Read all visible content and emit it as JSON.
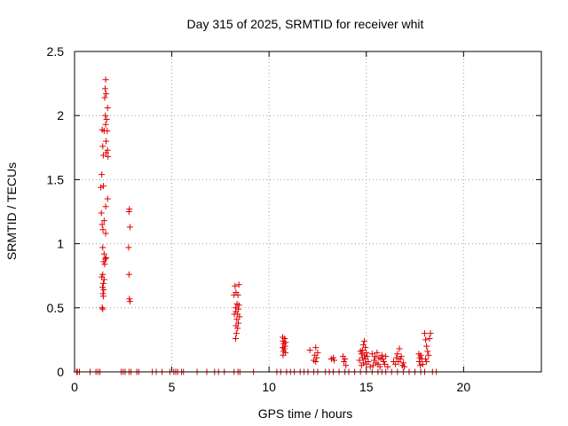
{
  "chart_data": {
    "type": "scatter",
    "title": "Day 315 of 2025, SRMTID for receiver whit",
    "xlabel": "GPS time / hours",
    "ylabel": "SRMTID / TECUs",
    "xlim": [
      0,
      24
    ],
    "ylim": [
      0,
      2.5
    ],
    "xticks": [
      0,
      5,
      10,
      15,
      20
    ],
    "yticks": [
      0,
      0.5,
      1,
      1.5,
      2,
      2.5
    ],
    "xtick_labels": [
      "0",
      "5",
      "10",
      "15",
      "20"
    ],
    "ytick_labels": [
      "0",
      "0.5",
      "1",
      "1.5",
      "2",
      "2.5"
    ],
    "grid": true,
    "marker": "+",
    "color": "#dd0000",
    "series": [
      {
        "name": "whit",
        "points": [
          [
            0.1,
            0
          ],
          [
            0.15,
            0
          ],
          [
            0.25,
            0
          ],
          [
            0.8,
            0
          ],
          [
            1.1,
            0
          ],
          [
            1.2,
            0
          ],
          [
            1.3,
            0
          ],
          [
            2.4,
            0
          ],
          [
            2.5,
            0
          ],
          [
            2.6,
            0
          ],
          [
            2.8,
            0
          ],
          [
            2.9,
            0
          ],
          [
            3.2,
            0
          ],
          [
            3.3,
            0
          ],
          [
            4.0,
            0
          ],
          [
            4.2,
            0
          ],
          [
            4.5,
            0
          ],
          [
            4.9,
            0
          ],
          [
            5.1,
            0
          ],
          [
            5.2,
            0
          ],
          [
            5.3,
            0
          ],
          [
            5.5,
            0
          ],
          [
            5.6,
            0
          ],
          [
            6.3,
            0
          ],
          [
            6.8,
            0
          ],
          [
            7.2,
            0
          ],
          [
            7.4,
            0
          ],
          [
            7.7,
            0
          ],
          [
            8.2,
            0
          ],
          [
            8.4,
            0
          ],
          [
            8.5,
            0
          ],
          [
            9.2,
            0
          ],
          [
            10.4,
            0
          ],
          [
            10.6,
            0
          ],
          [
            10.9,
            0
          ],
          [
            11.1,
            0
          ],
          [
            11.3,
            0
          ],
          [
            11.6,
            0
          ],
          [
            11.8,
            0
          ],
          [
            12.0,
            0
          ],
          [
            12.3,
            0
          ],
          [
            12.5,
            0
          ],
          [
            12.9,
            0
          ],
          [
            13.1,
            0
          ],
          [
            13.3,
            0
          ],
          [
            13.6,
            0
          ],
          [
            13.9,
            0
          ],
          [
            14.1,
            0
          ],
          [
            14.4,
            0
          ],
          [
            14.7,
            0
          ],
          [
            15.0,
            0
          ],
          [
            15.3,
            0
          ],
          [
            15.6,
            0
          ],
          [
            15.8,
            0
          ],
          [
            16.0,
            0
          ],
          [
            16.3,
            0
          ],
          [
            16.6,
            0
          ],
          [
            16.9,
            0
          ],
          [
            17.2,
            0
          ],
          [
            17.5,
            0
          ],
          [
            17.8,
            0
          ],
          [
            18.0,
            0
          ],
          [
            18.4,
            0
          ],
          [
            18.6,
            0
          ],
          [
            1.6,
            2.28
          ],
          [
            1.57,
            2.21
          ],
          [
            1.62,
            2.17
          ],
          [
            1.55,
            2.14
          ],
          [
            1.7,
            2.06
          ],
          [
            1.58,
            2.0
          ],
          [
            1.65,
            1.97
          ],
          [
            1.6,
            1.93
          ],
          [
            1.42,
            1.89
          ],
          [
            1.52,
            1.88
          ],
          [
            1.68,
            1.88
          ],
          [
            1.62,
            1.8
          ],
          [
            1.45,
            1.76
          ],
          [
            1.7,
            1.73
          ],
          [
            1.62,
            1.71
          ],
          [
            1.48,
            1.69
          ],
          [
            1.72,
            1.68
          ],
          [
            1.4,
            1.54
          ],
          [
            1.48,
            1.45
          ],
          [
            1.35,
            1.44
          ],
          [
            1.7,
            1.35
          ],
          [
            1.6,
            1.29
          ],
          [
            1.38,
            1.24
          ],
          [
            1.52,
            1.18
          ],
          [
            1.42,
            1.15
          ],
          [
            1.46,
            1.11
          ],
          [
            1.6,
            1.08
          ],
          [
            1.45,
            0.97
          ],
          [
            1.52,
            0.92
          ],
          [
            1.62,
            0.89
          ],
          [
            1.58,
            0.88
          ],
          [
            1.5,
            0.86
          ],
          [
            1.55,
            0.84
          ],
          [
            1.45,
            0.76
          ],
          [
            1.4,
            0.74
          ],
          [
            1.52,
            0.72
          ],
          [
            1.48,
            0.69
          ],
          [
            1.44,
            0.66
          ],
          [
            1.5,
            0.64
          ],
          [
            1.46,
            0.61
          ],
          [
            1.48,
            0.59
          ],
          [
            1.42,
            0.5
          ],
          [
            1.45,
            0.49
          ],
          [
            2.82,
            1.27
          ],
          [
            2.8,
            1.25
          ],
          [
            2.85,
            1.13
          ],
          [
            2.78,
            0.97
          ],
          [
            2.8,
            0.76
          ],
          [
            2.82,
            0.57
          ],
          [
            2.85,
            0.55
          ],
          [
            8.25,
            0.67
          ],
          [
            8.45,
            0.68
          ],
          [
            8.3,
            0.62
          ],
          [
            8.4,
            0.6
          ],
          [
            8.2,
            0.6
          ],
          [
            8.35,
            0.53
          ],
          [
            8.45,
            0.52
          ],
          [
            8.28,
            0.5
          ],
          [
            8.42,
            0.49
          ],
          [
            8.3,
            0.47
          ],
          [
            8.38,
            0.45
          ],
          [
            8.22,
            0.45
          ],
          [
            8.48,
            0.43
          ],
          [
            8.34,
            0.41
          ],
          [
            8.42,
            0.38
          ],
          [
            8.3,
            0.36
          ],
          [
            8.38,
            0.34
          ],
          [
            8.32,
            0.3
          ],
          [
            8.28,
            0.26
          ],
          [
            10.7,
            0.27
          ],
          [
            10.8,
            0.26
          ],
          [
            10.72,
            0.24
          ],
          [
            10.85,
            0.23
          ],
          [
            10.76,
            0.22
          ],
          [
            10.82,
            0.2
          ],
          [
            10.7,
            0.19
          ],
          [
            10.78,
            0.18
          ],
          [
            10.74,
            0.16
          ],
          [
            10.84,
            0.15
          ],
          [
            10.72,
            0.13
          ],
          [
            12.1,
            0.17
          ],
          [
            12.4,
            0.19
          ],
          [
            12.5,
            0.15
          ],
          [
            12.35,
            0.13
          ],
          [
            12.45,
            0.11
          ],
          [
            12.3,
            0.09
          ],
          [
            12.4,
            0.08
          ],
          [
            13.2,
            0.1
          ],
          [
            13.3,
            0.11
          ],
          [
            13.35,
            0.09
          ],
          [
            13.8,
            0.12
          ],
          [
            13.9,
            0.1
          ],
          [
            13.85,
            0.08
          ],
          [
            13.95,
            0.05
          ],
          [
            14.9,
            0.24
          ],
          [
            14.85,
            0.21
          ],
          [
            14.95,
            0.19
          ],
          [
            14.8,
            0.17
          ],
          [
            14.7,
            0.16
          ],
          [
            15.0,
            0.15
          ],
          [
            14.75,
            0.14
          ],
          [
            14.9,
            0.13
          ],
          [
            15.05,
            0.12
          ],
          [
            14.8,
            0.11
          ],
          [
            14.95,
            0.1
          ],
          [
            14.65,
            0.09
          ],
          [
            15.1,
            0.08
          ],
          [
            14.85,
            0.07
          ],
          [
            15.0,
            0.06
          ],
          [
            14.75,
            0.05
          ],
          [
            15.2,
            0.04
          ],
          [
            15.3,
            0.14
          ],
          [
            15.45,
            0.12
          ],
          [
            15.55,
            0.15
          ],
          [
            15.65,
            0.11
          ],
          [
            15.4,
            0.09
          ],
          [
            15.75,
            0.1
          ],
          [
            15.5,
            0.07
          ],
          [
            15.6,
            0.06
          ],
          [
            15.35,
            0.05
          ],
          [
            15.7,
            0.04
          ],
          [
            15.9,
            0.08
          ],
          [
            16.0,
            0.12
          ],
          [
            15.85,
            0.1
          ],
          [
            15.95,
            0.06
          ],
          [
            16.1,
            0.04
          ],
          [
            15.8,
            0.13
          ],
          [
            16.7,
            0.18
          ],
          [
            16.6,
            0.14
          ],
          [
            16.8,
            0.12
          ],
          [
            16.55,
            0.11
          ],
          [
            16.75,
            0.1
          ],
          [
            16.65,
            0.08
          ],
          [
            16.9,
            0.07
          ],
          [
            16.5,
            0.06
          ],
          [
            16.85,
            0.05
          ],
          [
            16.4,
            0.08
          ],
          [
            16.95,
            0.04
          ],
          [
            17.7,
            0.14
          ],
          [
            17.8,
            0.13
          ],
          [
            17.75,
            0.11
          ],
          [
            17.85,
            0.1
          ],
          [
            17.72,
            0.08
          ],
          [
            17.9,
            0.06
          ],
          [
            17.78,
            0.05
          ],
          [
            18.0,
            0.3
          ],
          [
            18.3,
            0.3
          ],
          [
            18.25,
            0.26
          ],
          [
            18.05,
            0.25
          ],
          [
            18.1,
            0.2
          ],
          [
            18.15,
            0.16
          ],
          [
            18.2,
            0.13
          ],
          [
            18.05,
            0.1
          ],
          [
            18.1,
            0.08
          ]
        ]
      }
    ]
  }
}
